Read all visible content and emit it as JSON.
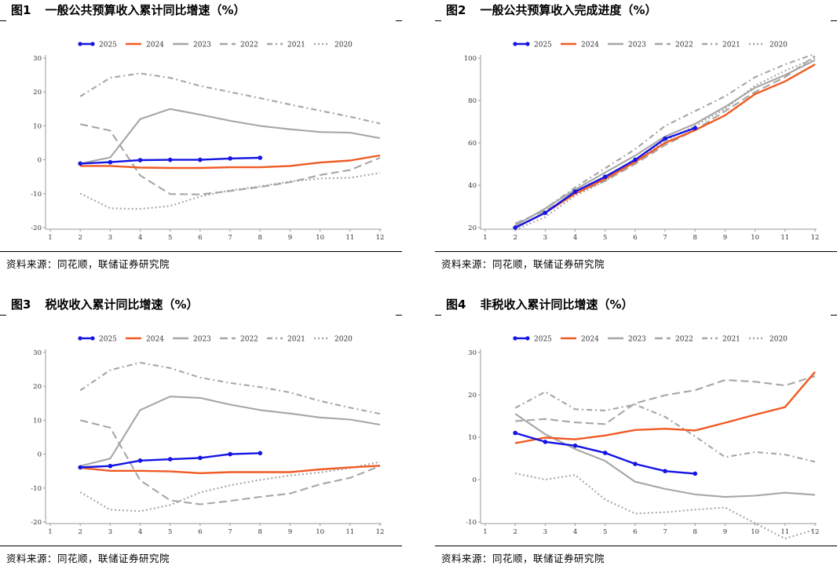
{
  "sources": {
    "panel1": "资料来源：同花顺，联储证券研究院",
    "panel2": "资料来源：同花顺，联储证券研究院",
    "panel3": "资料来源：同花顺，联储证券研究院",
    "panel4": "资料来源：同花顺，联储证券研究院"
  },
  "titles": {
    "panel1": {
      "label": "图1",
      "text": "一般公共预算收入累计同比增速（%）"
    },
    "panel2": {
      "label": "图2",
      "text": "一般公共预算收入完成进度（%）"
    },
    "panel3": {
      "label": "图3",
      "text": "税收收入累计同比增速（%）"
    },
    "panel4": {
      "label": "图4",
      "text": "非税收入累计同比增速（%）"
    }
  },
  "legend": [
    {
      "name": "2025",
      "color": "#1414e6",
      "style": "solid-marker"
    },
    {
      "name": "2024",
      "color": "#f05a23",
      "style": "solid"
    },
    {
      "name": "2023",
      "color": "#a6a6a6",
      "style": "solid"
    },
    {
      "name": "2022",
      "color": "#a6a6a6",
      "style": "dashed"
    },
    {
      "name": "2021",
      "color": "#a6a6a6",
      "style": "dash-dot"
    },
    {
      "name": "2020",
      "color": "#a6a6a6",
      "style": "dotted"
    }
  ],
  "chart_data": [
    {
      "id": "panel1",
      "type": "line",
      "title": "一般公共预算收入累计同比增速（%）",
      "categories": [
        "1",
        "2",
        "3",
        "4",
        "5",
        "6",
        "7",
        "8",
        "9",
        "10",
        "11",
        "12"
      ],
      "ylim": [
        -20,
        30
      ],
      "yticks": [
        -20,
        -10,
        0,
        10,
        20,
        30
      ],
      "series": [
        {
          "name": "2025",
          "values": [
            null,
            -1.1,
            -0.7,
            -0.1,
            0.0,
            0.0,
            0.4,
            0.6,
            null,
            null,
            null,
            null
          ]
        },
        {
          "name": "2024",
          "values": [
            null,
            -1.8,
            -1.8,
            -2.3,
            -2.4,
            -2.4,
            -2.2,
            -2.2,
            -1.8,
            -0.8,
            -0.2,
            1.3
          ]
        },
        {
          "name": "2023",
          "values": [
            null,
            -1.1,
            0.7,
            12.0,
            15.0,
            13.3,
            11.5,
            10.0,
            9.0,
            8.2,
            8.0,
            6.4
          ]
        },
        {
          "name": "2022",
          "values": [
            null,
            10.5,
            8.6,
            -4.6,
            -10.1,
            -10.2,
            -9.2,
            -8.0,
            -6.6,
            -4.5,
            -3.0,
            0.6
          ]
        },
        {
          "name": "2021",
          "values": [
            null,
            18.7,
            24.2,
            25.5,
            24.2,
            21.8,
            20.0,
            18.2,
            16.3,
            14.5,
            12.7,
            10.7
          ]
        },
        {
          "name": "2020",
          "values": [
            null,
            -9.9,
            -14.3,
            -14.5,
            -13.6,
            -10.8,
            -9.0,
            -7.8,
            -6.4,
            -5.5,
            -5.3,
            -3.9
          ]
        }
      ]
    },
    {
      "id": "panel2",
      "type": "line",
      "title": "一般公共预算收入完成进度（%）",
      "categories": [
        "1",
        "2",
        "3",
        "4",
        "5",
        "6",
        "7",
        "8",
        "9",
        "10",
        "11",
        "12"
      ],
      "ylim": [
        20,
        100
      ],
      "yticks": [
        20,
        40,
        60,
        80,
        100
      ],
      "series": [
        {
          "name": "2025",
          "values": [
            null,
            20,
            27,
            37,
            44,
            52,
            62,
            67,
            null,
            null,
            null,
            null
          ]
        },
        {
          "name": "2024",
          "values": [
            null,
            20,
            27,
            36,
            43,
            51,
            60,
            66,
            73,
            83,
            89,
            97
          ]
        },
        {
          "name": "2023",
          "values": [
            null,
            21,
            29,
            38,
            46,
            54,
            63,
            69,
            77,
            86,
            92,
            99
          ]
        },
        {
          "name": "2022",
          "values": [
            null,
            22,
            28,
            36,
            42,
            50,
            59,
            66,
            75,
            84,
            91,
            101
          ]
        },
        {
          "name": "2021",
          "values": [
            null,
            21,
            29,
            39,
            48,
            57,
            68,
            75,
            82,
            91,
            97,
            102
          ]
        },
        {
          "name": "2020",
          "values": [
            null,
            19,
            25,
            35,
            42,
            51,
            61,
            68,
            76,
            87,
            94,
            100
          ]
        }
      ]
    },
    {
      "id": "panel3",
      "type": "line",
      "title": "税收收入累计同比增速（%）",
      "categories": [
        "1",
        "2",
        "3",
        "4",
        "5",
        "6",
        "7",
        "8",
        "9",
        "10",
        "11",
        "12"
      ],
      "ylim": [
        -20,
        30
      ],
      "yticks": [
        -20,
        -10,
        0,
        10,
        20,
        30
      ],
      "series": [
        {
          "name": "2025",
          "values": [
            null,
            -3.9,
            -3.5,
            -1.9,
            -1.5,
            -1.1,
            0.0,
            0.3,
            null,
            null,
            null,
            null
          ]
        },
        {
          "name": "2024",
          "values": [
            null,
            -4.0,
            -4.9,
            -4.9,
            -5.1,
            -5.6,
            -5.3,
            -5.3,
            -5.3,
            -4.5,
            -3.9,
            -3.4
          ]
        },
        {
          "name": "2023",
          "values": [
            null,
            -3.5,
            -1.3,
            13.0,
            17.0,
            16.6,
            14.6,
            13.0,
            12.0,
            10.8,
            10.2,
            8.7
          ]
        },
        {
          "name": "2022",
          "values": [
            null,
            10.0,
            7.8,
            -7.7,
            -13.6,
            -14.8,
            -13.8,
            -12.6,
            -11.6,
            -8.9,
            -7.0,
            -3.5
          ]
        },
        {
          "name": "2021",
          "values": [
            null,
            18.8,
            24.8,
            27.0,
            25.4,
            22.6,
            21.0,
            19.8,
            18.2,
            15.7,
            13.7,
            11.9
          ]
        },
        {
          "name": "2020",
          "values": [
            null,
            -11.2,
            -16.4,
            -16.8,
            -15.0,
            -11.3,
            -9.2,
            -7.6,
            -6.3,
            -5.4,
            -4.1,
            -2.3
          ]
        }
      ]
    },
    {
      "id": "panel4",
      "type": "line",
      "title": "非税收入累计同比增速（%）",
      "categories": [
        "1",
        "2",
        "3",
        "4",
        "5",
        "6",
        "7",
        "8",
        "9",
        "10",
        "11",
        "12"
      ],
      "ylim": [
        -10,
        30
      ],
      "yticks": [
        -10,
        0,
        10,
        20,
        30
      ],
      "series": [
        {
          "name": "2025",
          "values": [
            null,
            11.0,
            8.9,
            8.0,
            6.3,
            3.7,
            2.0,
            1.4,
            null,
            null,
            null,
            null
          ]
        },
        {
          "name": "2024",
          "values": [
            null,
            8.6,
            9.9,
            9.5,
            10.4,
            11.7,
            12.0,
            11.6,
            13.4,
            15.3,
            17.1,
            25.4
          ]
        },
        {
          "name": "2023",
          "values": [
            null,
            15.5,
            10.7,
            7.2,
            4.4,
            -0.5,
            -2.2,
            -3.5,
            -4.1,
            -3.8,
            -3.1,
            -3.6
          ]
        },
        {
          "name": "2022",
          "values": [
            null,
            13.8,
            14.3,
            13.5,
            13.1,
            18.0,
            19.9,
            21.1,
            23.5,
            23.1,
            22.2,
            24.4
          ]
        },
        {
          "name": "2021",
          "values": [
            null,
            16.9,
            20.7,
            16.6,
            16.3,
            17.7,
            14.8,
            10.2,
            5.3,
            6.5,
            5.9,
            4.2
          ]
        },
        {
          "name": "2020",
          "values": [
            null,
            1.5,
            0.0,
            1.1,
            -4.7,
            -8.0,
            -7.7,
            -7.1,
            -6.6,
            -10.3,
            -13.9,
            -11.8
          ]
        }
      ]
    }
  ]
}
